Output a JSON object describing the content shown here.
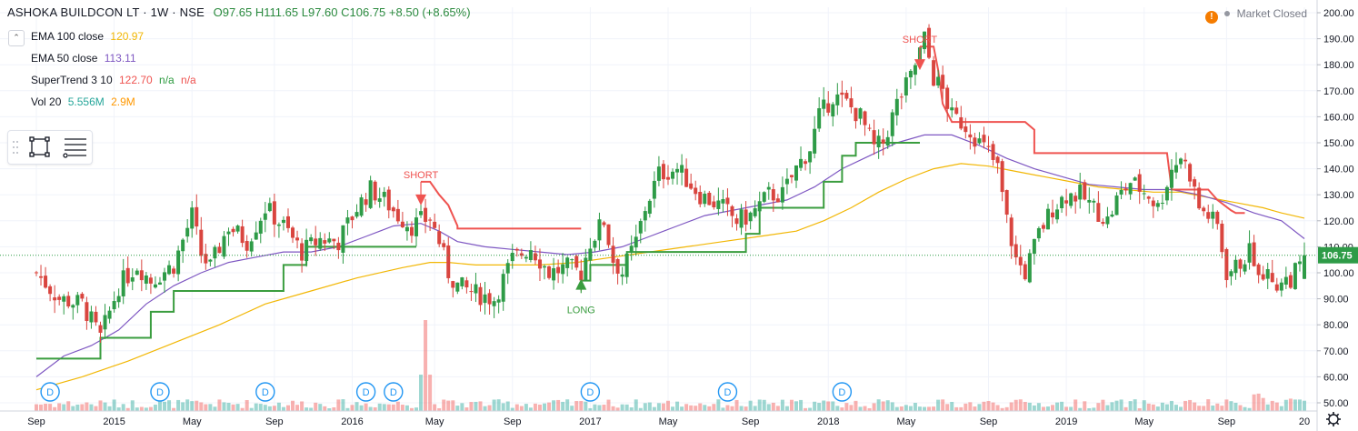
{
  "header": {
    "symbol": "ASHOKA BUILDCON LT · 1W · NSE",
    "open": "O97.65",
    "high": "H111.65",
    "low": "L97.60",
    "close": "C106.75",
    "change": "+8.50 (+8.65%)",
    "market_status": "Market Closed"
  },
  "indicators": [
    {
      "label": "EMA 100 close",
      "value": "120.97",
      "color": "#f2b705"
    },
    {
      "label": "EMA 50 close",
      "value": "113.11",
      "color": "#7e57c2"
    },
    {
      "label": "SuperTrend 3 10",
      "value": "122.70",
      "extra1": "n/a",
      "extra2": "n/a",
      "color": "#ef5350",
      "color2": "#2b9a3e"
    },
    {
      "label": "Vol 20",
      "value": "5.556M",
      "extra1": "2.9M",
      "color": "#26a69a",
      "color2": "#ff9800"
    }
  ],
  "colors": {
    "up": "#2e9b47",
    "down": "#d9453f",
    "ema100": "#f2b705",
    "ema50": "#7e57c2",
    "st_down": "#ef5350",
    "st_up": "#3a9d3f",
    "grid": "#f0f3fa"
  },
  "chart_data": {
    "type": "candlestick",
    "ylim": [
      50,
      200
    ],
    "y_ticks": [
      "200.00",
      "190.00",
      "180.00",
      "170.00",
      "160.00",
      "150.00",
      "140.00",
      "130.00",
      "120.00",
      "110.00",
      "100.00",
      "90.00",
      "80.00",
      "70.00",
      "60.00",
      "50.00"
    ],
    "last_price_label": "106.75",
    "x_ticks": [
      {
        "label": "Sep",
        "t": 0
      },
      {
        "label": "2015",
        "t": 17
      },
      {
        "label": "May",
        "t": 34
      },
      {
        "label": "Sep",
        "t": 52
      },
      {
        "label": "2016",
        "t": 69
      },
      {
        "label": "May",
        "t": 87
      },
      {
        "label": "Sep",
        "t": 104
      },
      {
        "label": "2017",
        "t": 121
      },
      {
        "label": "May",
        "t": 138
      },
      {
        "label": "Sep",
        "t": 156
      },
      {
        "label": "2018",
        "t": 173
      },
      {
        "label": "May",
        "t": 190
      },
      {
        "label": "Sep",
        "t": 208
      },
      {
        "label": "2019",
        "t": 225
      },
      {
        "label": "May",
        "t": 242
      },
      {
        "label": "Sep",
        "t": 260
      },
      {
        "label": "20",
        "t": 277
      }
    ],
    "close_series": [
      [
        0,
        100
      ],
      [
        5,
        90
      ],
      [
        10,
        88
      ],
      [
        14,
        75
      ],
      [
        18,
        95
      ],
      [
        22,
        103
      ],
      [
        25,
        97
      ],
      [
        30,
        103
      ],
      [
        34,
        122
      ],
      [
        36,
        107
      ],
      [
        38,
        102
      ],
      [
        42,
        118
      ],
      [
        46,
        112
      ],
      [
        50,
        125
      ],
      [
        54,
        118
      ],
      [
        58,
        108
      ],
      [
        62,
        113
      ],
      [
        66,
        112
      ],
      [
        70,
        125
      ],
      [
        73,
        132
      ],
      [
        76,
        128
      ],
      [
        79,
        122
      ],
      [
        82,
        118
      ],
      [
        84,
        120
      ],
      [
        86,
        121
      ],
      [
        88,
        112
      ],
      [
        90,
        100
      ],
      [
        92,
        95
      ],
      [
        96,
        92
      ],
      [
        100,
        90
      ],
      [
        104,
        105
      ],
      [
        108,
        110
      ],
      [
        112,
        100
      ],
      [
        116,
        102
      ],
      [
        119,
        100
      ],
      [
        121,
        112
      ],
      [
        124,
        120
      ],
      [
        126,
        105
      ],
      [
        128,
        100
      ],
      [
        131,
        112
      ],
      [
        133,
        125
      ],
      [
        136,
        138
      ],
      [
        140,
        140
      ],
      [
        145,
        130
      ],
      [
        150,
        125
      ],
      [
        153,
        120
      ],
      [
        156,
        122
      ],
      [
        160,
        130
      ],
      [
        163,
        130
      ],
      [
        166,
        140
      ],
      [
        169,
        148
      ],
      [
        171,
        160
      ],
      [
        174,
        168
      ],
      [
        177,
        165
      ],
      [
        180,
        160
      ],
      [
        183,
        148
      ],
      [
        185,
        150
      ],
      [
        188,
        165
      ],
      [
        191,
        175
      ],
      [
        193,
        185
      ],
      [
        194,
        190
      ],
      [
        196,
        175
      ],
      [
        198,
        170
      ],
      [
        200,
        160
      ],
      [
        202,
        158
      ],
      [
        204,
        155
      ],
      [
        206,
        150
      ],
      [
        208,
        146
      ],
      [
        210,
        140
      ],
      [
        212,
        120
      ],
      [
        214,
        105
      ],
      [
        216,
        100
      ],
      [
        219,
        115
      ],
      [
        222,
        125
      ],
      [
        225,
        130
      ],
      [
        228,
        130
      ],
      [
        231,
        125
      ],
      [
        234,
        120
      ],
      [
        236,
        128
      ],
      [
        239,
        135
      ],
      [
        243,
        130
      ],
      [
        245,
        125
      ],
      [
        248,
        140
      ],
      [
        250,
        145
      ],
      [
        252,
        138
      ],
      [
        254,
        125
      ],
      [
        256,
        122
      ],
      [
        258,
        118
      ],
      [
        260,
        100
      ],
      [
        262,
        102
      ],
      [
        265,
        108
      ],
      [
        268,
        100
      ],
      [
        271,
        96
      ],
      [
        274,
        98
      ],
      [
        276,
        102
      ],
      [
        277,
        106.75
      ]
    ],
    "ema50": [
      [
        0,
        60
      ],
      [
        6,
        68
      ],
      [
        12,
        72
      ],
      [
        18,
        78
      ],
      [
        24,
        88
      ],
      [
        30,
        95
      ],
      [
        36,
        100
      ],
      [
        42,
        104
      ],
      [
        48,
        106
      ],
      [
        54,
        108
      ],
      [
        60,
        108
      ],
      [
        66,
        110
      ],
      [
        72,
        114
      ],
      [
        78,
        118
      ],
      [
        84,
        119
      ],
      [
        88,
        116
      ],
      [
        92,
        112
      ],
      [
        98,
        110
      ],
      [
        104,
        109
      ],
      [
        110,
        108
      ],
      [
        116,
        107
      ],
      [
        122,
        108
      ],
      [
        128,
        110
      ],
      [
        134,
        114
      ],
      [
        140,
        118
      ],
      [
        146,
        122
      ],
      [
        152,
        124
      ],
      [
        158,
        126
      ],
      [
        164,
        128
      ],
      [
        170,
        133
      ],
      [
        176,
        140
      ],
      [
        182,
        145
      ],
      [
        188,
        150
      ],
      [
        194,
        153
      ],
      [
        200,
        153
      ],
      [
        206,
        149
      ],
      [
        212,
        144
      ],
      [
        218,
        140
      ],
      [
        224,
        137
      ],
      [
        230,
        134
      ],
      [
        236,
        133
      ],
      [
        242,
        132
      ],
      [
        248,
        132
      ],
      [
        254,
        130
      ],
      [
        260,
        127
      ],
      [
        266,
        123
      ],
      [
        272,
        120
      ],
      [
        277,
        113.1
      ]
    ],
    "ema100": [
      [
        0,
        55
      ],
      [
        10,
        60
      ],
      [
        20,
        66
      ],
      [
        30,
        73
      ],
      [
        40,
        80
      ],
      [
        50,
        88
      ],
      [
        60,
        93
      ],
      [
        70,
        98
      ],
      [
        80,
        102
      ],
      [
        86,
        104
      ],
      [
        90,
        104
      ],
      [
        96,
        103
      ],
      [
        102,
        103
      ],
      [
        110,
        103
      ],
      [
        118,
        104
      ],
      [
        126,
        106
      ],
      [
        134,
        108
      ],
      [
        142,
        110
      ],
      [
        150,
        112
      ],
      [
        158,
        114
      ],
      [
        166,
        116
      ],
      [
        172,
        120
      ],
      [
        178,
        125
      ],
      [
        184,
        131
      ],
      [
        190,
        136
      ],
      [
        196,
        140
      ],
      [
        202,
        142
      ],
      [
        208,
        141
      ],
      [
        214,
        139
      ],
      [
        220,
        137
      ],
      [
        226,
        135
      ],
      [
        232,
        133
      ],
      [
        238,
        132
      ],
      [
        244,
        131
      ],
      [
        250,
        131
      ],
      [
        256,
        129
      ],
      [
        262,
        127
      ],
      [
        268,
        125
      ],
      [
        272,
        123
      ],
      [
        277,
        121
      ]
    ],
    "supertrend": [
      {
        "trend": "up",
        "points": [
          [
            0,
            67
          ],
          [
            14,
            67
          ],
          [
            14,
            75
          ],
          [
            25,
            75
          ],
          [
            25,
            85
          ],
          [
            30,
            85
          ],
          [
            30,
            93
          ],
          [
            54,
            93
          ],
          [
            54,
            103
          ],
          [
            59,
            103
          ],
          [
            59,
            110
          ],
          [
            65,
            110
          ],
          [
            65,
            110
          ],
          [
            70,
            110
          ],
          [
            70,
            110
          ],
          [
            83,
            110
          ],
          [
            83,
            110
          ]
        ]
      },
      {
        "trend": "down",
        "points": [
          [
            84,
            135
          ],
          [
            86,
            135
          ],
          [
            88,
            130
          ],
          [
            90,
            126
          ],
          [
            92,
            118
          ],
          [
            92,
            117
          ],
          [
            115,
            117
          ],
          [
            115,
            117
          ],
          [
            119,
            117
          ],
          [
            119,
            117
          ]
        ]
      },
      {
        "trend": "up",
        "points": [
          [
            119,
            97
          ],
          [
            121,
            97
          ],
          [
            121,
            103
          ],
          [
            129,
            103
          ],
          [
            129,
            108
          ],
          [
            133,
            108
          ],
          [
            133,
            108
          ],
          [
            150,
            108
          ],
          [
            155,
            108
          ],
          [
            155,
            115
          ],
          [
            158,
            115
          ],
          [
            158,
            125
          ],
          [
            172,
            125
          ],
          [
            172,
            135
          ],
          [
            176,
            135
          ],
          [
            176,
            145
          ],
          [
            179,
            145
          ],
          [
            179,
            150
          ],
          [
            190,
            150
          ],
          [
            190,
            150
          ],
          [
            193,
            150
          ]
        ]
      },
      {
        "trend": "down",
        "points": [
          [
            193,
            187
          ],
          [
            196,
            187
          ],
          [
            197,
            178
          ],
          [
            198,
            165
          ],
          [
            200,
            158
          ],
          [
            200,
            158
          ],
          [
            216,
            158
          ],
          [
            216,
            158
          ],
          [
            218,
            155
          ],
          [
            218,
            146
          ],
          [
            241,
            146
          ],
          [
            241,
            146
          ],
          [
            247,
            146
          ],
          [
            248,
            132
          ],
          [
            256,
            132
          ],
          [
            258,
            128
          ],
          [
            258,
            128
          ],
          [
            261,
            124
          ],
          [
            262,
            123
          ],
          [
            264,
            123
          ]
        ]
      }
    ],
    "signals": [
      {
        "label": "SHORT",
        "t": 84,
        "type": "short"
      },
      {
        "label": "LONG",
        "t": 119,
        "type": "long"
      },
      {
        "label": "SHORT",
        "t": 193,
        "type": "short"
      }
    ],
    "dividend_markers": [
      {
        "label": "D",
        "t": 3
      },
      {
        "label": "D",
        "t": 27
      },
      {
        "label": "D",
        "t": 50
      },
      {
        "label": "D",
        "t": 72
      },
      {
        "label": "D",
        "t": 78
      },
      {
        "label": "D",
        "t": 121
      },
      {
        "label": "D",
        "t": 151
      },
      {
        "label": "D",
        "t": 176
      }
    ]
  }
}
